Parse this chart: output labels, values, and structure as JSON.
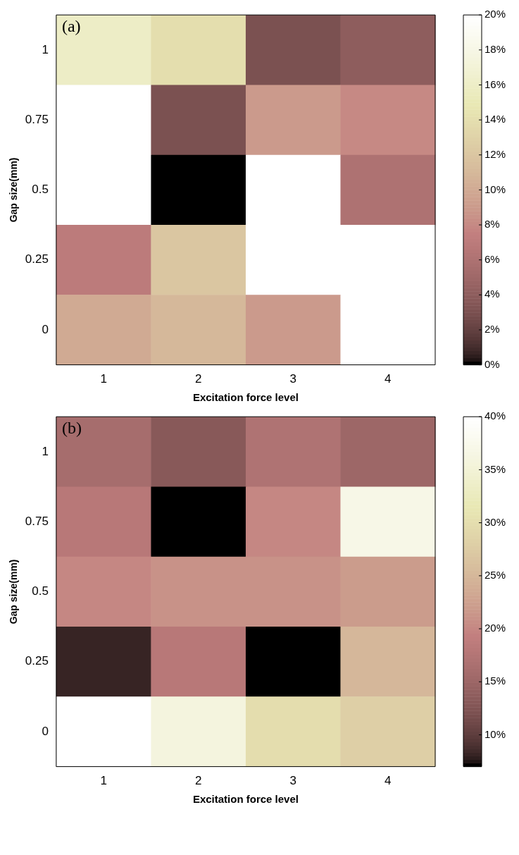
{
  "chart_data": [
    {
      "type": "heatmap",
      "annotations": [
        "(a)"
      ],
      "xlabel": "Excitation force level",
      "ylabel": "Gap size(mm)",
      "categories": [
        "1",
        "2",
        "3",
        "4"
      ],
      "y_categories": [
        "1",
        "0.75",
        "0.5",
        "0.25",
        "0"
      ],
      "cells": [
        [
          16,
          14,
          3,
          4
        ],
        [
          20,
          3,
          9,
          8
        ],
        [
          20,
          0,
          20,
          6
        ],
        [
          7,
          12,
          20,
          20
        ],
        [
          10,
          11,
          9,
          20
        ]
      ],
      "clim": [
        0,
        20
      ],
      "cticks": [
        {
          "value": 0,
          "label": "0%"
        },
        {
          "value": 2,
          "label": "2%"
        },
        {
          "value": 4,
          "label": "4%"
        },
        {
          "value": 6,
          "label": "6%"
        },
        {
          "value": 8,
          "label": "8%"
        },
        {
          "value": 10,
          "label": "10%"
        },
        {
          "value": 12,
          "label": "12%"
        },
        {
          "value": 14,
          "label": "14%"
        },
        {
          "value": 16,
          "label": "16%"
        },
        {
          "value": 18,
          "label": "18%"
        },
        {
          "value": 20,
          "label": "20%"
        }
      ],
      "grid": false,
      "legend": false
    },
    {
      "type": "heatmap",
      "annotations": [
        "(b)"
      ],
      "xlabel": "Excitation force level",
      "ylabel": "Gap size(mm)",
      "categories": [
        "1",
        "2",
        "3",
        "4"
      ],
      "y_categories": [
        "1",
        "0.75",
        "0.5",
        "0.25",
        "0"
      ],
      "cells": [
        [
          16,
          13,
          17,
          15
        ],
        [
          18,
          7,
          20,
          37
        ],
        [
          20,
          21,
          21,
          22
        ],
        [
          8,
          18,
          7,
          25
        ],
        [
          40,
          36,
          30,
          28
        ]
      ],
      "clim": [
        7,
        40
      ],
      "cticks": [
        {
          "value": 10,
          "label": "10%"
        },
        {
          "value": 15,
          "label": "15%"
        },
        {
          "value": 20,
          "label": "20%"
        },
        {
          "value": 25,
          "label": "25%"
        },
        {
          "value": 30,
          "label": "30%"
        },
        {
          "value": 35,
          "label": "35%"
        },
        {
          "value": 40,
          "label": "40%"
        }
      ],
      "grid": false,
      "legend": false
    }
  ]
}
